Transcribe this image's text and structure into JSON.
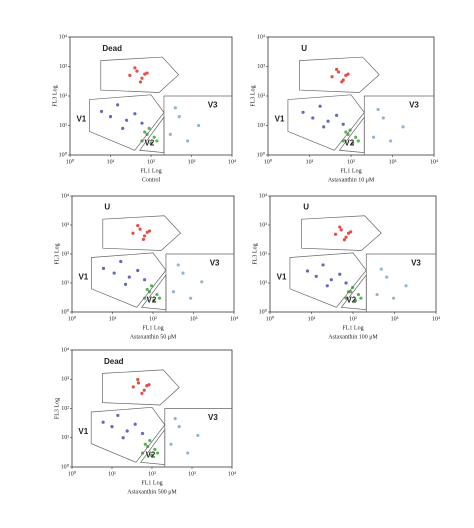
{
  "chart_data": [
    {
      "type": "scatter",
      "caption": "Control",
      "xlabel": "FL1 Log",
      "ylabel": "FL3 Log",
      "log_scale": true,
      "xlim": [
        1,
        10000
      ],
      "ylim": [
        1,
        10000
      ],
      "xticks": [
        {
          "value": 1,
          "label": "10⁰"
        },
        {
          "value": 10,
          "label": "10¹"
        },
        {
          "value": 100,
          "label": "10²"
        },
        {
          "value": 1000,
          "label": "10³"
        },
        {
          "value": 10000,
          "label": "10⁴"
        }
      ],
      "yticks": [
        {
          "value": 1,
          "label": "10⁰"
        },
        {
          "value": 10,
          "label": "10¹"
        },
        {
          "value": 100,
          "label": "10²"
        },
        {
          "value": 1000,
          "label": "10³"
        },
        {
          "value": 10000,
          "label": "10⁴"
        }
      ],
      "gates": [
        "Dead",
        "V1",
        "V2",
        "V3"
      ],
      "series": [
        {
          "color": "#e0302a",
          "x": [
            30,
            45,
            60,
            80,
            40,
            55,
            70
          ],
          "values": [
            500,
            700,
            400,
            600,
            900,
            300,
            550
          ]
        },
        {
          "color": "#4a4fb0",
          "x": [
            6,
            10,
            15,
            25,
            40,
            20,
            60
          ],
          "values": [
            30,
            20,
            50,
            15,
            25,
            8,
            12
          ]
        },
        {
          "color": "#3fa33a",
          "x": [
            60,
            80,
            100,
            120,
            90,
            140,
            70
          ],
          "values": [
            3,
            5,
            2.5,
            4,
            8,
            3,
            6
          ]
        },
        {
          "color": "#7fa9c9",
          "x": [
            300,
            500,
            800,
            1500,
            400
          ],
          "values": [
            5,
            20,
            3,
            10,
            40
          ]
        }
      ]
    },
    {
      "type": "scatter",
      "caption": "Astaxanthin 10 μM",
      "xlabel": "FL1 Log",
      "ylabel": "FL3 Log",
      "log_scale": true,
      "xlim": [
        1,
        10000
      ],
      "ylim": [
        1,
        10000
      ],
      "xticks": [
        {
          "value": 1,
          "label": "10⁰"
        },
        {
          "value": 10,
          "label": "10¹"
        },
        {
          "value": 100,
          "label": "10²"
        },
        {
          "value": 1000,
          "label": "10³"
        },
        {
          "value": 10000,
          "label": "10⁴"
        }
      ],
      "yticks": [
        {
          "value": 1,
          "label": "10⁰"
        },
        {
          "value": 10,
          "label": "10¹"
        },
        {
          "value": 100,
          "label": "10²"
        },
        {
          "value": 1000,
          "label": "10³"
        },
        {
          "value": 10000,
          "label": "10⁴"
        }
      ],
      "gates": [
        "U",
        "V1",
        "V2",
        "V3"
      ],
      "series": [
        {
          "color": "#e0302a",
          "x": [
            35,
            50,
            65,
            85,
            45,
            60,
            75
          ],
          "values": [
            450,
            650,
            350,
            550,
            800,
            300,
            500
          ]
        },
        {
          "color": "#4a4fb0",
          "x": [
            7,
            12,
            18,
            28,
            45,
            22,
            65
          ],
          "values": [
            28,
            18,
            45,
            14,
            22,
            9,
            11
          ]
        },
        {
          "color": "#3fa33a",
          "x": [
            65,
            85,
            110,
            130,
            95,
            150,
            75
          ],
          "values": [
            3,
            5,
            2.5,
            4,
            7,
            3,
            6
          ]
        },
        {
          "color": "#7fa9c9",
          "x": [
            350,
            600,
            900,
            1800,
            450
          ],
          "values": [
            4,
            18,
            3,
            9,
            35
          ]
        }
      ]
    },
    {
      "type": "scatter",
      "caption": "Astaxanthin 50 μM",
      "xlabel": "FL1 Log",
      "ylabel": "FL3 Log",
      "log_scale": true,
      "xlim": [
        1,
        10000
      ],
      "ylim": [
        1,
        10000
      ],
      "xticks": [
        {
          "value": 1,
          "label": "10⁰"
        },
        {
          "value": 10,
          "label": "10¹"
        },
        {
          "value": 100,
          "label": "10²"
        },
        {
          "value": 1000,
          "label": "10³"
        },
        {
          "value": 10000,
          "label": "10⁴"
        }
      ],
      "yticks": [
        {
          "value": 1,
          "label": "10⁰"
        },
        {
          "value": 10,
          "label": "10¹"
        },
        {
          "value": 100,
          "label": "10²"
        },
        {
          "value": 1000,
          "label": "10³"
        },
        {
          "value": 10000,
          "label": "10⁴"
        }
      ],
      "gates": [
        "U",
        "V1",
        "V2",
        "V3"
      ],
      "series": [
        {
          "color": "#e0302a",
          "x": [
            32,
            48,
            62,
            82,
            42,
            58,
            72
          ],
          "values": [
            520,
            720,
            420,
            620,
            950,
            320,
            560
          ]
        },
        {
          "color": "#4a4fb0",
          "x": [
            6,
            11,
            16,
            26,
            42,
            21,
            62
          ],
          "values": [
            32,
            22,
            55,
            16,
            27,
            9,
            13
          ]
        },
        {
          "color": "#3fa33a",
          "x": [
            62,
            82,
            105,
            125,
            92,
            145,
            72
          ],
          "values": [
            3,
            5,
            2.5,
            4,
            8,
            3,
            6
          ]
        },
        {
          "color": "#7fa9c9",
          "x": [
            320,
            550,
            850,
            1600,
            420
          ],
          "values": [
            5,
            22,
            3,
            11,
            42
          ]
        }
      ]
    },
    {
      "type": "scatter",
      "caption": "Astaxanthin 100 μM",
      "xlabel": "FL1 Log",
      "ylabel": "FL3 Log",
      "log_scale": true,
      "xlim": [
        1,
        10000
      ],
      "ylim": [
        1,
        10000
      ],
      "xticks": [
        {
          "value": 1,
          "label": "10⁰"
        },
        {
          "value": 10,
          "label": "10¹"
        },
        {
          "value": 100,
          "label": "10²"
        },
        {
          "value": 1000,
          "label": "10³"
        },
        {
          "value": 10000,
          "label": "10⁴"
        }
      ],
      "yticks": [
        {
          "value": 1,
          "label": "10⁰"
        },
        {
          "value": 10,
          "label": "10¹"
        },
        {
          "value": 100,
          "label": "10²"
        },
        {
          "value": 1000,
          "label": "10³"
        },
        {
          "value": 10000,
          "label": "10⁴"
        }
      ],
      "gates": [
        "U",
        "V1",
        "V2",
        "V3"
      ],
      "series": [
        {
          "color": "#e0302a",
          "x": [
            38,
            52,
            68,
            88,
            48,
            62,
            78
          ],
          "values": [
            480,
            680,
            380,
            580,
            850,
            310,
            520
          ]
        },
        {
          "color": "#4a4fb0",
          "x": [
            8,
            13,
            19,
            30,
            48,
            24,
            68
          ],
          "values": [
            26,
            17,
            42,
            13,
            20,
            8,
            10
          ]
        },
        {
          "color": "#3fa33a",
          "x": [
            68,
            88,
            115,
            135,
            98,
            155,
            78
          ],
          "values": [
            3,
            5,
            2.5,
            4,
            7,
            3,
            5
          ]
        },
        {
          "color": "#7fa9c9",
          "x": [
            380,
            650,
            950,
            1900,
            480
          ],
          "values": [
            4,
            16,
            3,
            8,
            30
          ]
        }
      ]
    },
    {
      "type": "scatter",
      "caption": "Astaxanthin 500 μM",
      "xlabel": "FL1 Log",
      "ylabel": "FL3 Log",
      "log_scale": true,
      "xlim": [
        1,
        10000
      ],
      "ylim": [
        1,
        10000
      ],
      "xticks": [
        {
          "value": 1,
          "label": "10⁰"
        },
        {
          "value": 10,
          "label": "10¹"
        },
        {
          "value": 100,
          "label": "10²"
        },
        {
          "value": 1000,
          "label": "10³"
        },
        {
          "value": 10000,
          "label": "10⁴"
        }
      ],
      "yticks": [
        {
          "value": 1,
          "label": "10⁰"
        },
        {
          "value": 10,
          "label": "10¹"
        },
        {
          "value": 100,
          "label": "10²"
        },
        {
          "value": 1000,
          "label": "10³"
        },
        {
          "value": 10000,
          "label": "10⁴"
        }
      ],
      "gates": [
        "Dead",
        "V1",
        "V2",
        "V3"
      ],
      "series": [
        {
          "color": "#e0302a",
          "x": [
            34,
            46,
            64,
            84,
            44,
            56,
            74
          ],
          "values": [
            550,
            750,
            420,
            650,
            980,
            330,
            600
          ]
        },
        {
          "color": "#4a4fb0",
          "x": [
            6,
            10,
            14,
            24,
            38,
            19,
            58
          ],
          "values": [
            34,
            24,
            58,
            17,
            29,
            10,
            14
          ]
        },
        {
          "color": "#3fa33a",
          "x": [
            58,
            78,
            98,
            118,
            88,
            138,
            68
          ],
          "values": [
            3,
            5,
            2.5,
            4,
            8,
            3,
            6
          ]
        },
        {
          "color": "#7fa9c9",
          "x": [
            300,
            480,
            780,
            1400,
            380
          ],
          "values": [
            6,
            24,
            3,
            12,
            45
          ]
        }
      ]
    }
  ]
}
